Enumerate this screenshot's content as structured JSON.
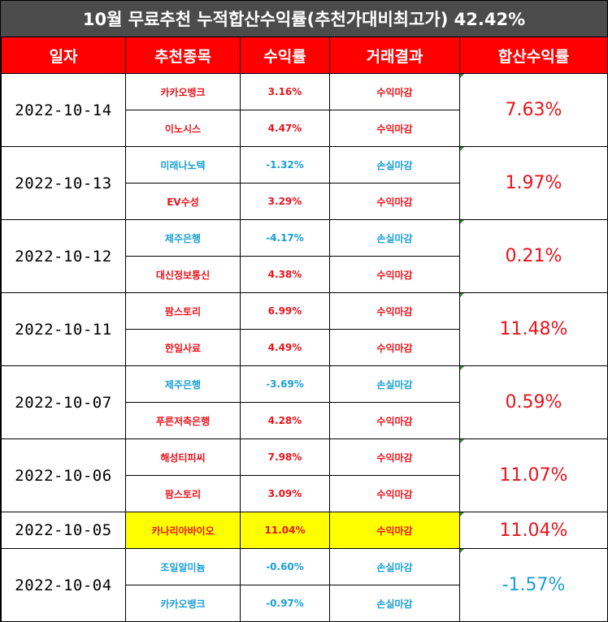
{
  "title": "10월 무료추천 누적합산수익률(추천가대비최고가) 42.42%",
  "headers": {
    "date": "일자",
    "stock": "추천종목",
    "return": "수익률",
    "result": "거래결과",
    "cumulative": "합산수익률"
  },
  "groups": [
    {
      "date": "2022-10-14",
      "cumulative": "7.63%",
      "cum_sign": "pos",
      "rows": [
        {
          "stock": "카카오뱅크",
          "return": "3.16%",
          "result": "수익마감",
          "sign": "pos"
        },
        {
          "stock": "이노시스",
          "return": "4.47%",
          "result": "수익마감",
          "sign": "pos"
        }
      ]
    },
    {
      "date": "2022-10-13",
      "cumulative": "1.97%",
      "cum_sign": "pos",
      "rows": [
        {
          "stock": "미래나노텍",
          "return": "-1.32%",
          "result": "손실마감",
          "sign": "neg"
        },
        {
          "stock": "EV수성",
          "return": "3.29%",
          "result": "수익마감",
          "sign": "pos"
        }
      ]
    },
    {
      "date": "2022-10-12",
      "cumulative": "0.21%",
      "cum_sign": "pos",
      "rows": [
        {
          "stock": "제주은행",
          "return": "-4.17%",
          "result": "손실마감",
          "sign": "neg"
        },
        {
          "stock": "대신정보통신",
          "return": "4.38%",
          "result": "수익마감",
          "sign": "pos"
        }
      ]
    },
    {
      "date": "2022-10-11",
      "cumulative": "11.48%",
      "cum_sign": "pos",
      "rows": [
        {
          "stock": "팜스토리",
          "return": "6.99%",
          "result": "수익마감",
          "sign": "pos"
        },
        {
          "stock": "한일사료",
          "return": "4.49%",
          "result": "수익마감",
          "sign": "pos"
        }
      ]
    },
    {
      "date": "2022-10-07",
      "cumulative": "0.59%",
      "cum_sign": "pos",
      "rows": [
        {
          "stock": "제주은행",
          "return": "-3.69%",
          "result": "손실마감",
          "sign": "neg"
        },
        {
          "stock": "푸른저축은행",
          "return": "4.28%",
          "result": "수익마감",
          "sign": "pos"
        }
      ]
    },
    {
      "date": "2022-10-06",
      "cumulative": "11.07%",
      "cum_sign": "pos",
      "rows": [
        {
          "stock": "해성티피씨",
          "return": "7.98%",
          "result": "수익마감",
          "sign": "pos"
        },
        {
          "stock": "팜스토리",
          "return": "3.09%",
          "result": "수익마감",
          "sign": "pos"
        }
      ]
    },
    {
      "date": "2022-10-05",
      "cumulative": "11.04%",
      "cum_sign": "pos",
      "highlight": true,
      "rows": [
        {
          "stock": "카나리아바이오",
          "return": "11.04%",
          "result": "수익마감",
          "sign": "pos"
        }
      ]
    },
    {
      "date": "2022-10-04",
      "cumulative": "-1.57%",
      "cum_sign": "neg",
      "rows": [
        {
          "stock": "조일알미늄",
          "return": "-0.60%",
          "result": "손실마감",
          "sign": "neg"
        },
        {
          "stock": "카카오뱅크",
          "return": "-0.97%",
          "result": "손실마감",
          "sign": "neg"
        }
      ]
    }
  ],
  "colors": {
    "title_bg": "#4b4b4b",
    "header_bg": "#ff0000",
    "positive": "#e8141c",
    "negative": "#1a9fd4",
    "highlight": "#ffff00"
  }
}
